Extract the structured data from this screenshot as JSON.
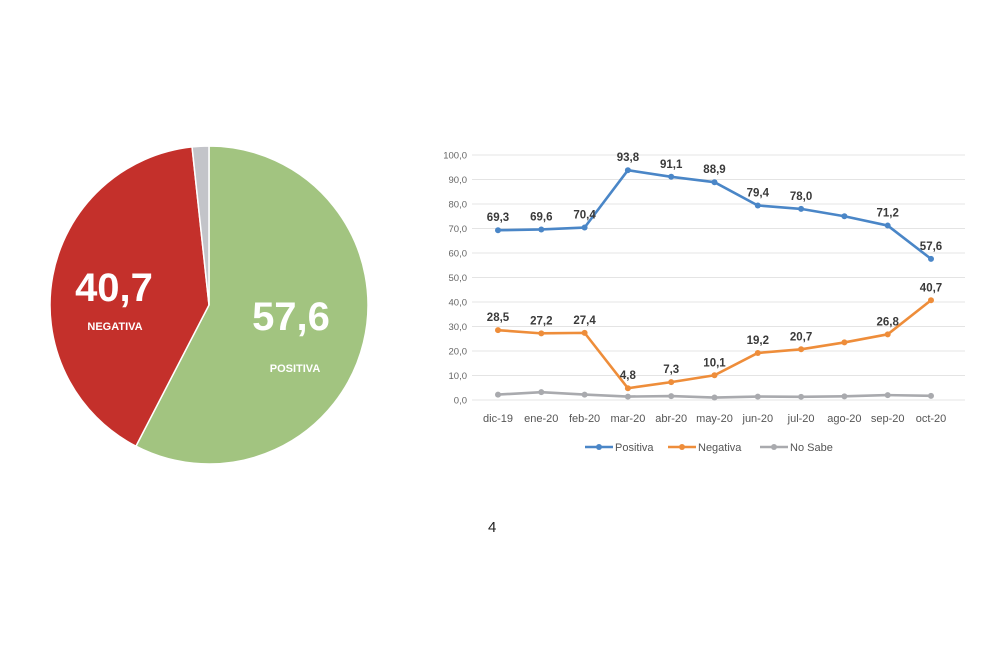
{
  "chart_data": [
    {
      "type": "pie",
      "title": "",
      "slices": [
        {
          "label": "POSITIVA",
          "value": 57.6,
          "display": "57,6",
          "color": "#a2c480"
        },
        {
          "label": "NEGATIVA",
          "value": 40.7,
          "display": "40,7",
          "color": "#c4302b"
        },
        {
          "label": "",
          "value": 1.7,
          "display": "",
          "color": "#c3c4c9"
        }
      ]
    },
    {
      "type": "line",
      "title": "",
      "categories": [
        "dic-19",
        "ene-20",
        "feb-20",
        "mar-20",
        "abr-20",
        "may-20",
        "jun-20",
        "jul-20",
        "ago-20",
        "sep-20",
        "oct-20"
      ],
      "ylim": [
        0,
        100
      ],
      "yticks": [
        "0,0",
        "10,0",
        "20,0",
        "30,0",
        "40,0",
        "50,0",
        "60,0",
        "70,0",
        "80,0",
        "90,0",
        "100,0"
      ],
      "grid": true,
      "legend_position": "bottom",
      "series": [
        {
          "name": "Positiva",
          "color": "#4a86c7",
          "values": [
            69.3,
            69.6,
            70.4,
            93.8,
            91.1,
            88.9,
            79.4,
            78.0,
            75.0,
            71.2,
            57.6
          ],
          "labels": [
            "69,3",
            "69,6",
            "70,4",
            "93,8",
            "91,1",
            "88,9",
            "79,4",
            "78,0",
            "",
            "71,2",
            "57,6"
          ]
        },
        {
          "name": "Negativa",
          "color": "#ee8d3a",
          "values": [
            28.5,
            27.2,
            27.4,
            4.8,
            7.3,
            10.1,
            19.2,
            20.7,
            23.5,
            26.8,
            40.7
          ],
          "labels": [
            "28,5",
            "27,2",
            "27,4",
            "4,8",
            "7,3",
            "10,1",
            "19,2",
            "20,7",
            "",
            "26,8",
            "40,7"
          ]
        },
        {
          "name": "No Sabe",
          "color": "#a9aaae",
          "values": [
            2.2,
            3.2,
            2.2,
            1.4,
            1.6,
            1.0,
            1.4,
            1.3,
            1.5,
            2.0,
            1.7
          ],
          "labels": [
            "",
            "",
            "",
            "",
            "",
            "",
            "",
            "",
            "",
            "",
            ""
          ]
        }
      ]
    }
  ],
  "page_number": "4"
}
